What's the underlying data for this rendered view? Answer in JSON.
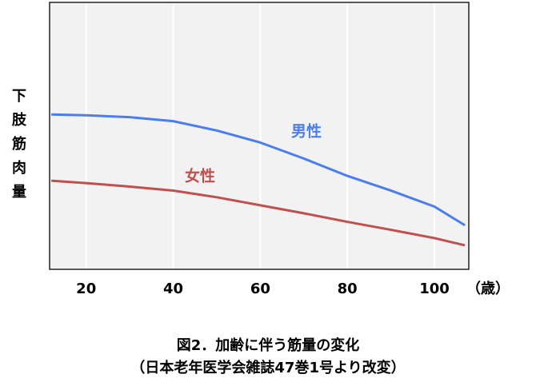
{
  "chart_data": {
    "type": "line",
    "title": "図2．加齢に伴う筋量の変化",
    "subtitle": "（日本老年医学会雑誌47巻1号より改変）",
    "y_label": "下肢筋肉量",
    "x_label": "（歳）",
    "x": [
      12,
      20,
      30,
      40,
      50,
      60,
      70,
      80,
      90,
      100,
      107
    ],
    "series": [
      {
        "name": "男性",
        "color": "#4a7ef0",
        "values": [
          58,
          57.7,
          57,
          55.5,
          52,
          47.5,
          41.5,
          35,
          29.5,
          23.5,
          16.5
        ]
      },
      {
        "name": "女性",
        "color": "#c0504d",
        "values": [
          33.2,
          32.3,
          31,
          29.5,
          27,
          24,
          21,
          17.8,
          14.8,
          11.7,
          9
        ]
      }
    ],
    "xlim": [
      11.6,
      107.9
    ],
    "ylim": [
      0,
      100
    ],
    "xticks": [
      20,
      40,
      60,
      80,
      100
    ],
    "grid": true
  }
}
